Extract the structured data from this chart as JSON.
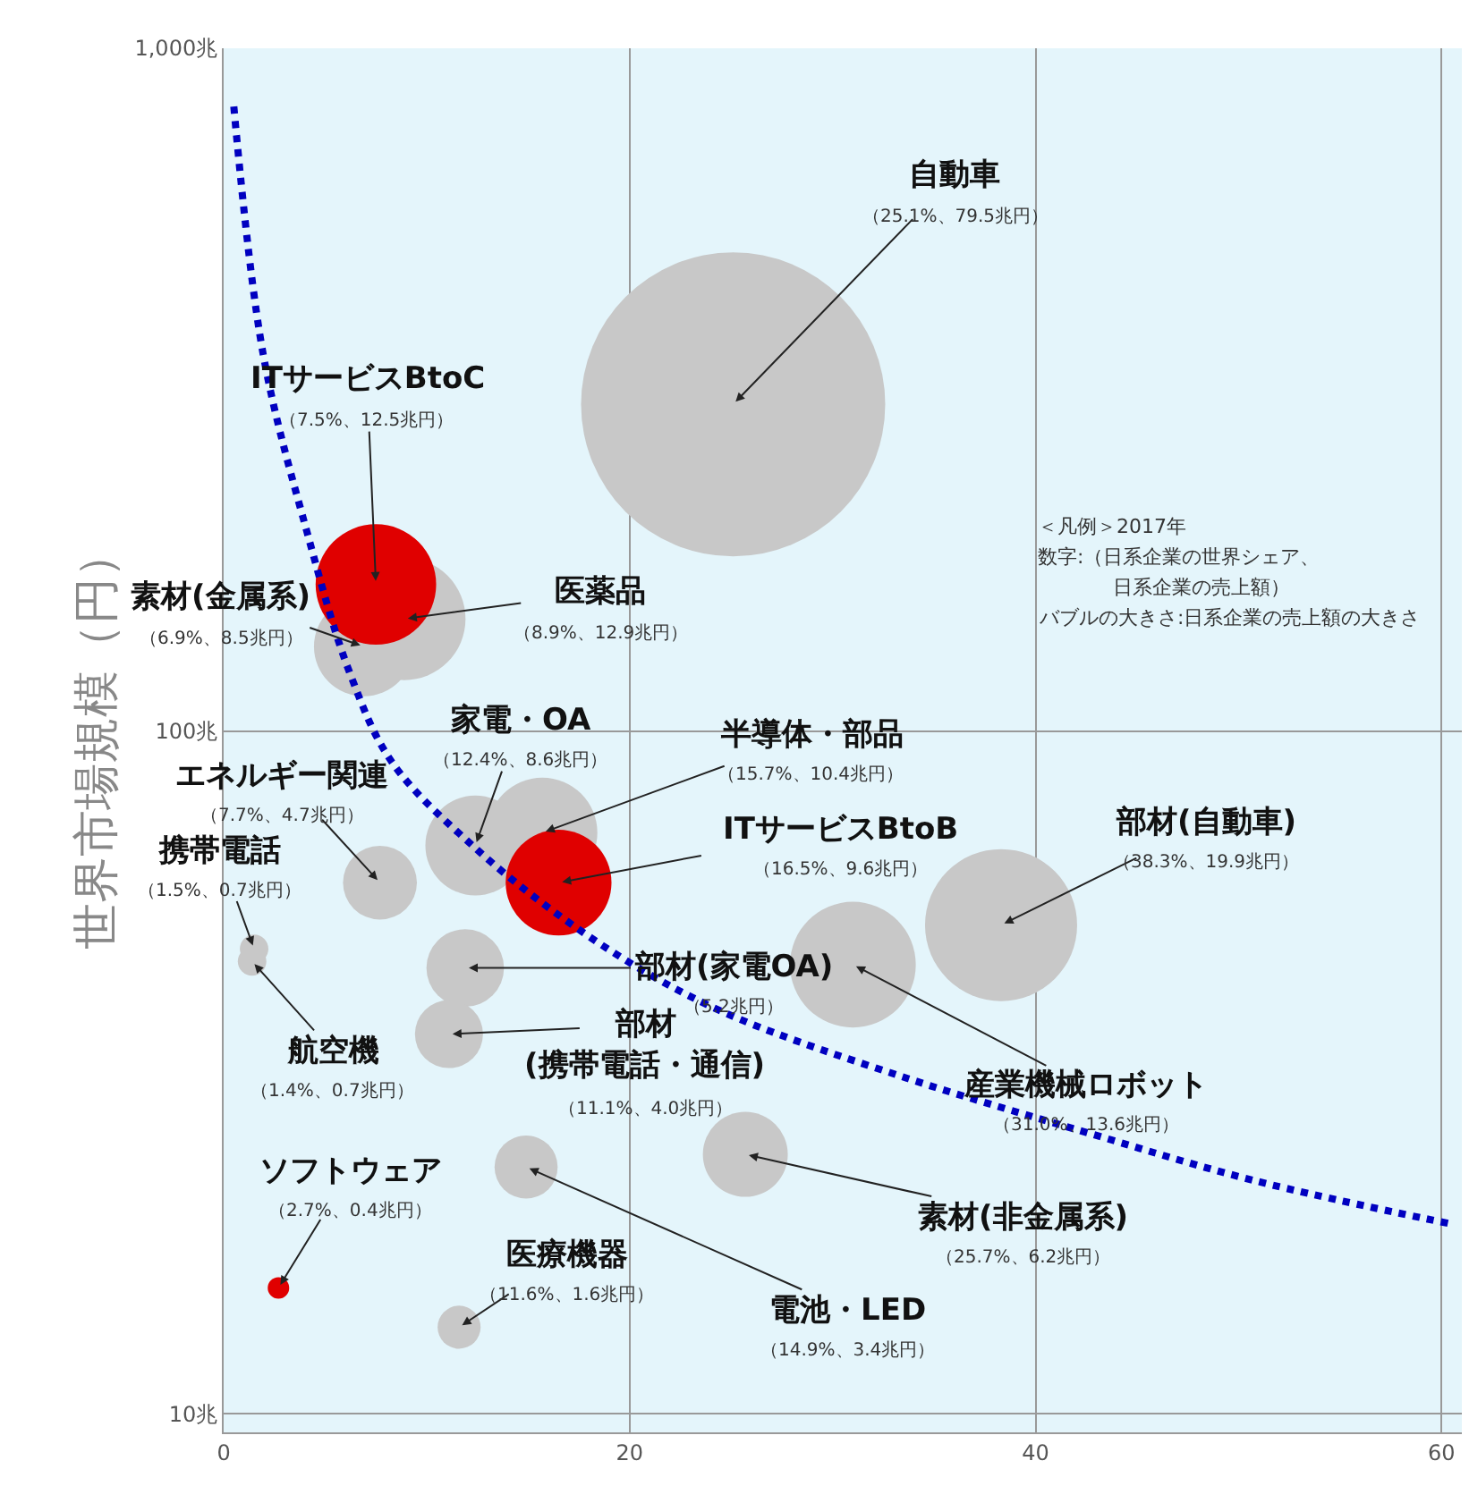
{
  "chart_data": {
    "type": "bubble",
    "ylabel": "世界市場規模（円）",
    "log": "y",
    "grid": true,
    "xlim": [
      0,
      61
    ],
    "ylim": [
      9.4,
      1000
    ],
    "xticks": [
      0,
      20,
      40,
      60
    ],
    "yticks": [
      {
        "value": 10,
        "label": "10兆"
      },
      {
        "value": 100,
        "label": "100兆"
      },
      {
        "value": 1000,
        "label": "1,000兆"
      }
    ],
    "series": [
      {
        "x": [
          25.1,
          8.9,
          6.9,
          7.5,
          12.4,
          15.7,
          16.5,
          7.7,
          1.5,
          1.4,
          11.9,
          11.1,
          31.0,
          38.3,
          25.7,
          14.9,
          2.7,
          11.6
        ],
        "values": [
          301,
          146,
          133,
          164,
          68,
          71,
          60,
          60,
          48,
          46,
          45,
          36,
          45.5,
          52,
          24,
          23,
          15.3,
          13.4
        ],
        "sizes": [
          1,
          0.162,
          0.107,
          0.157,
          0.108,
          0.131,
          0.121,
          0.059,
          0.0088,
          0.0088,
          0.065,
          0.05,
          0.171,
          0.25,
          0.078,
          0.043,
          0.005,
          0.02
        ],
        "colors": [
          "#c8c8c8",
          "#c8c8c8",
          "#c8c8c8",
          "#e00000",
          "#c8c8c8",
          "#c8c8c8",
          "#e00000",
          "#c8c8c8",
          "#c8c8c8",
          "#c8c8c8",
          "#c8c8c8",
          "#c8c8c8",
          "#c8c8c8",
          "#c8c8c8",
          "#c8c8c8",
          "#c8c8c8",
          "#e00000",
          "#c8c8c8"
        ]
      },
      {
        "type": "line",
        "color": "#0000c0",
        "line_style": "dotted",
        "x": [
          0.5,
          1.95,
          4.1,
          6.2,
          8.3,
          12.5,
          16.8,
          21.0,
          25.3,
          33.7,
          42.2,
          50.7,
          60.4
        ],
        "values": [
          822,
          356,
          196,
          122,
          90,
          67,
          53,
          44,
          38,
          31,
          26,
          22,
          19
        ]
      }
    ],
    "annotations": [
      {
        "text": "自動車",
        "x": 25.1,
        "y": 301
      },
      "（25.1%、79.5兆円）",
      {
        "text": "医薬品",
        "x": 8.9,
        "y": 146
      },
      "（8.9%、12.9兆円）",
      {
        "text": "素材(金属系)",
        "x": 6.9,
        "y": 133
      },
      "（6.9%、8.5兆円）",
      {
        "text": "ITサービスBtoC",
        "x": 7.5,
        "y": 164
      },
      "（7.5%、12.5兆円）",
      {
        "text": "家電・OA",
        "x": 12.4,
        "y": 68
      },
      "（12.4%、8.6兆円）",
      {
        "text": "半導体・部品",
        "x": 15.7,
        "y": 71
      },
      "（15.7%、10.4兆円）",
      {
        "text": "ITサービスBtoB",
        "x": 16.5,
        "y": 60
      },
      "（16.5%、9.6兆円）",
      {
        "text": "エネルギー関連",
        "x": 7.7,
        "y": 60
      },
      "（7.7%、4.7兆円）",
      {
        "text": "携帯電話",
        "x": 1.5,
        "y": 48
      },
      "（1.5%、0.7兆円）",
      {
        "text": "航空機",
        "x": 1.4,
        "y": 46
      },
      "（1.4%、0.7兆円）",
      {
        "text": "部材(家電OA)",
        "x": 11.9,
        "y": 45
      },
      "（5.2兆円）",
      {
        "text": "部材",
        "x": 11.1,
        "y": 36
      },
      "(携帯電話・通信)",
      "（11.1%、4.0兆円）",
      {
        "text": "産業機械ロボット",
        "x": 31.0,
        "y": 45.5
      },
      "（31.0%、13.6兆円）",
      {
        "text": "部材(自動車)",
        "x": 38.3,
        "y": 52
      },
      "（38.3%、19.9兆円）",
      {
        "text": "素材(非金属系)",
        "x": 25.7,
        "y": 24
      },
      "（25.7%、6.2兆円）",
      {
        "text": "電池・LED",
        "x": 14.9,
        "y": 23
      },
      "（14.9%、3.4兆円）",
      {
        "text": "ソフトウェア",
        "x": 2.7,
        "y": 15.3
      },
      "（2.7%、0.4兆円）",
      {
        "text": "医療機器",
        "x": 11.6,
        "y": 13.4
      },
      "（11.6%、1.6兆円）",
      "＜凡例＞2017年",
      "数字:（日系企業の世界シェア、",
      "日系企業の売上額）",
      "バブルの大きさ:日系企業の売上額の大きさ"
    ]
  }
}
